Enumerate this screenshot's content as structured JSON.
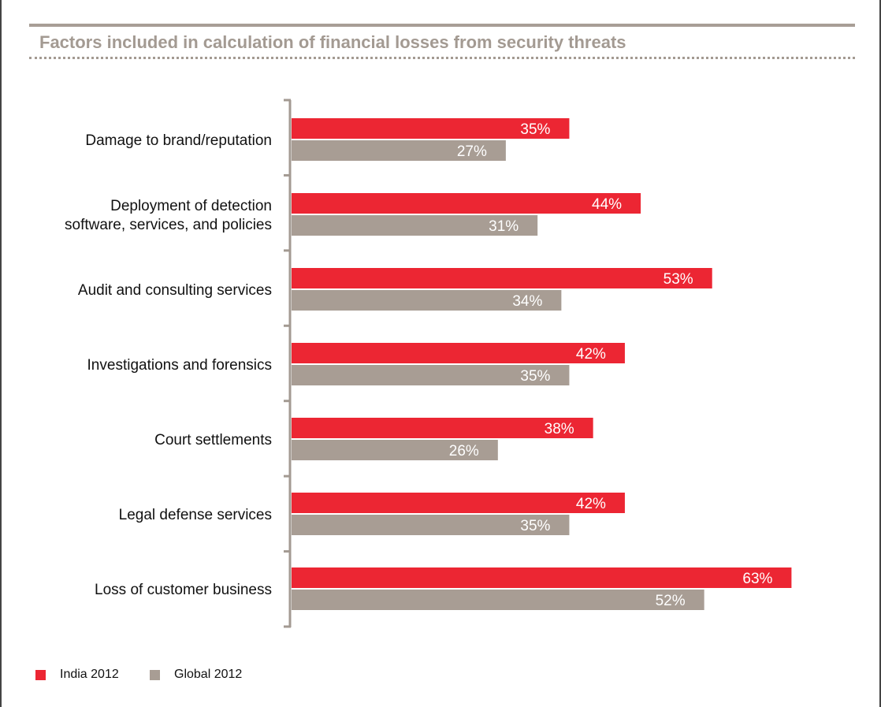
{
  "chart_data": {
    "type": "bar",
    "orientation": "horizontal",
    "title": "Factors included in calculation of financial losses from security threats",
    "categories": [
      [
        "Damage to brand/reputation"
      ],
      [
        "Deployment of detection",
        "software, services, and policies"
      ],
      [
        "Audit and consulting services"
      ],
      [
        "Investigations and forensics"
      ],
      [
        "Court settlements"
      ],
      [
        "Legal defense services"
      ],
      [
        "Loss of customer business"
      ]
    ],
    "series": [
      {
        "name": "India 2012",
        "color": "#ec2633",
        "values": [
          35,
          44,
          53,
          42,
          38,
          42,
          63
        ]
      },
      {
        "name": "Global 2012",
        "color": "#a89d94",
        "values": [
          27,
          31,
          34,
          35,
          26,
          35,
          52
        ]
      }
    ],
    "value_suffix": "%",
    "xlim": [
      0,
      63
    ],
    "legend_position": "bottom-left",
    "grid": false
  }
}
